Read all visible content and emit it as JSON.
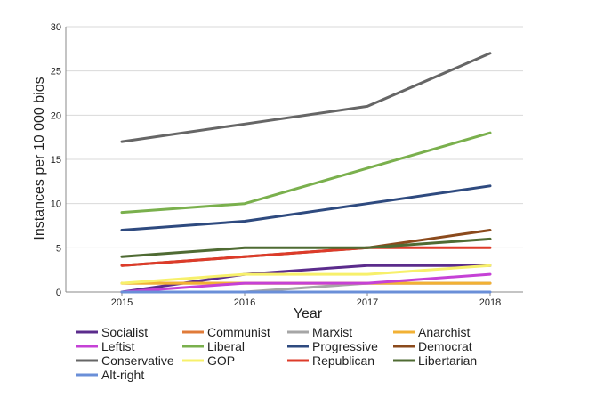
{
  "chart_data": {
    "type": "line",
    "xlabel": "Year",
    "ylabel": "Instances per 10 000 bios",
    "x": [
      2015,
      2016,
      2017,
      2018
    ],
    "xticks": [
      "2015",
      "2016",
      "2017",
      "2018"
    ],
    "ylim": [
      0,
      30
    ],
    "yticks": [
      "0",
      "5",
      "10",
      "15",
      "20",
      "25",
      "30"
    ],
    "grid": "horizontal",
    "legend_position": "bottom",
    "series": [
      {
        "name": "Socialist",
        "color": "#5b2c8c",
        "values": [
          0,
          2,
          3,
          3
        ]
      },
      {
        "name": "Communist",
        "color": "#e07b39",
        "values": [
          1,
          1,
          1,
          1
        ]
      },
      {
        "name": "Marxist",
        "color": "#a6a6a6",
        "values": [
          0,
          0,
          1,
          1
        ]
      },
      {
        "name": "Anarchist",
        "color": "#f2b134",
        "values": [
          1,
          1,
          1,
          1
        ]
      },
      {
        "name": "Leftist",
        "color": "#c541d6",
        "values": [
          0,
          1,
          1,
          2
        ]
      },
      {
        "name": "Liberal",
        "color": "#7ab04d",
        "values": [
          9,
          10,
          14,
          18
        ]
      },
      {
        "name": "Progressive",
        "color": "#2e4a7f",
        "values": [
          7,
          8,
          10,
          12
        ]
      },
      {
        "name": "Democrat",
        "color": "#8b4a1c",
        "values": [
          3,
          4,
          5,
          7
        ]
      },
      {
        "name": "Conservative",
        "color": "#666666",
        "values": [
          17,
          19,
          21,
          27
        ]
      },
      {
        "name": "GOP",
        "color": "#f7f06b",
        "values": [
          1,
          2,
          2,
          3
        ]
      },
      {
        "name": "Republican",
        "color": "#dd3b2a",
        "values": [
          3,
          4,
          5,
          5
        ]
      },
      {
        "name": "Libertarian",
        "color": "#4f6b33",
        "values": [
          4,
          5,
          5,
          6
        ]
      },
      {
        "name": "Alt-right",
        "color": "#6a8fd8",
        "values": [
          0,
          0,
          0,
          0
        ]
      }
    ]
  }
}
